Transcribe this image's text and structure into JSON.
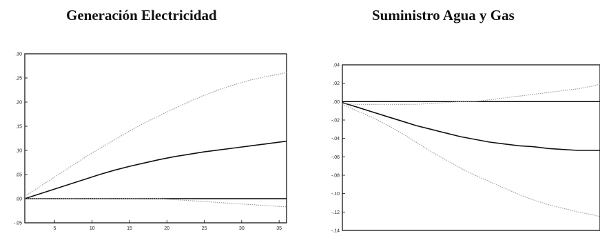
{
  "titles": {
    "left": "Generación Electricidad",
    "right": "Suministro Agua y Gas"
  },
  "colors": {
    "response_line": "#111111",
    "band_line": "#999999",
    "zero_line": "#000000",
    "frame": "#000000"
  },
  "chart_data": [
    {
      "type": "line",
      "title": "Generación Electricidad",
      "xlabel": "",
      "ylabel": "",
      "xlim": [
        1,
        36
      ],
      "ylim": [
        -0.05,
        0.3
      ],
      "x_ticks": [
        5,
        10,
        15,
        20,
        25,
        30,
        35
      ],
      "x_tick_labels": [
        "5",
        "10",
        "15",
        "20",
        "25",
        "30",
        "35"
      ],
      "y_ticks": [
        -0.05,
        0.0,
        0.05,
        0.1,
        0.15,
        0.2,
        0.25,
        0.3
      ],
      "y_tick_labels": [
        "-.05",
        ".00",
        ".05",
        ".10",
        ".15",
        ".20",
        ".25",
        ".30"
      ],
      "zero_line": 0,
      "x": [
        1,
        3,
        5,
        7,
        9,
        11,
        13,
        15,
        17,
        19,
        21,
        23,
        25,
        27,
        29,
        31,
        33,
        35,
        36
      ],
      "series": [
        {
          "role": "response",
          "style": "solid",
          "values": [
            0.0,
            0.01,
            0.02,
            0.03,
            0.04,
            0.05,
            0.059,
            0.067,
            0.074,
            0.081,
            0.087,
            0.092,
            0.097,
            0.101,
            0.105,
            0.109,
            0.113,
            0.117,
            0.119
          ]
        },
        {
          "role": "upper-band",
          "style": "dotted",
          "values": [
            0.005,
            0.025,
            0.045,
            0.065,
            0.085,
            0.104,
            0.122,
            0.14,
            0.157,
            0.172,
            0.187,
            0.201,
            0.214,
            0.226,
            0.236,
            0.245,
            0.252,
            0.258,
            0.261
          ]
        },
        {
          "role": "lower-band",
          "style": "dotted",
          "values": [
            0.0,
            0.0,
            0.0,
            0.0,
            0.0,
            0.0,
            0.0,
            0.0,
            0.0,
            0.0,
            -0.002,
            -0.004,
            -0.006,
            -0.008,
            -0.01,
            -0.012,
            -0.014,
            -0.016,
            -0.017
          ]
        }
      ]
    },
    {
      "type": "line",
      "title": "Suministro Agua y Gas",
      "xlabel": "",
      "ylabel": "",
      "xlim": [
        1,
        36
      ],
      "ylim": [
        -0.14,
        0.04
      ],
      "x_ticks": [],
      "x_tick_labels": [],
      "y_ticks": [
        -0.14,
        -0.12,
        -0.1,
        -0.08,
        -0.06,
        -0.04,
        -0.02,
        0.0,
        0.02,
        0.04
      ],
      "y_tick_labels": [
        "-.14",
        "-.12",
        "-.10",
        "-.08",
        "-.06",
        "-.04",
        "-.02",
        ".00",
        ".02",
        ".04"
      ],
      "zero_line": 0,
      "x": [
        1,
        3,
        5,
        7,
        9,
        11,
        13,
        15,
        17,
        19,
        21,
        23,
        25,
        27,
        29,
        31,
        33,
        35,
        36
      ],
      "series": [
        {
          "role": "response",
          "style": "solid",
          "values": [
            -0.001,
            -0.006,
            -0.011,
            -0.016,
            -0.021,
            -0.026,
            -0.03,
            -0.034,
            -0.038,
            -0.041,
            -0.044,
            -0.046,
            -0.048,
            -0.049,
            -0.051,
            -0.052,
            -0.053,
            -0.053,
            -0.053
          ]
        },
        {
          "role": "upper-band",
          "style": "dotted",
          "values": [
            -0.002,
            -0.003,
            -0.003,
            -0.003,
            -0.003,
            -0.003,
            -0.002,
            -0.001,
            0.0,
            0.0,
            0.002,
            0.004,
            0.006,
            0.008,
            0.01,
            0.012,
            0.014,
            0.017,
            0.019
          ]
        },
        {
          "role": "lower-band",
          "style": "dotted",
          "values": [
            -0.003,
            -0.01,
            -0.017,
            -0.025,
            -0.034,
            -0.044,
            -0.054,
            -0.063,
            -0.072,
            -0.08,
            -0.087,
            -0.094,
            -0.101,
            -0.107,
            -0.112,
            -0.116,
            -0.12,
            -0.123,
            -0.125
          ]
        }
      ]
    }
  ]
}
